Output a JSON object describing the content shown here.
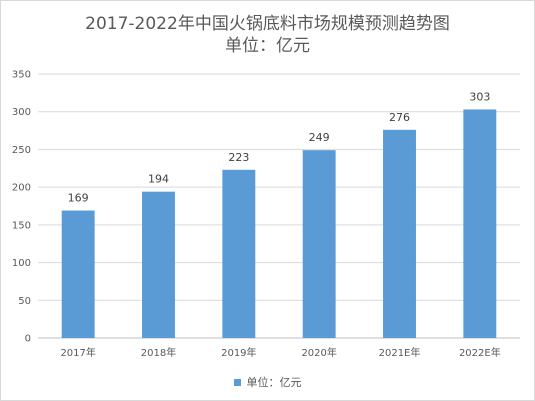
{
  "chart_data": {
    "type": "bar",
    "title": "2017-2022年中国火锅底料市场规模预测趋势图",
    "subtitle": "单位：亿元",
    "categories": [
      "2017年",
      "2018年",
      "2019年",
      "2020年",
      "2021E年",
      "2022E年"
    ],
    "series": [
      {
        "name": "单位：亿元",
        "values": [
          169,
          194,
          223,
          249,
          276,
          303
        ],
        "color": "#5b9bd5"
      }
    ],
    "ylim": [
      0,
      350
    ],
    "yticks": [
      0,
      50,
      100,
      150,
      200,
      250,
      300,
      350
    ],
    "grid": true,
    "legend": "bottom"
  }
}
